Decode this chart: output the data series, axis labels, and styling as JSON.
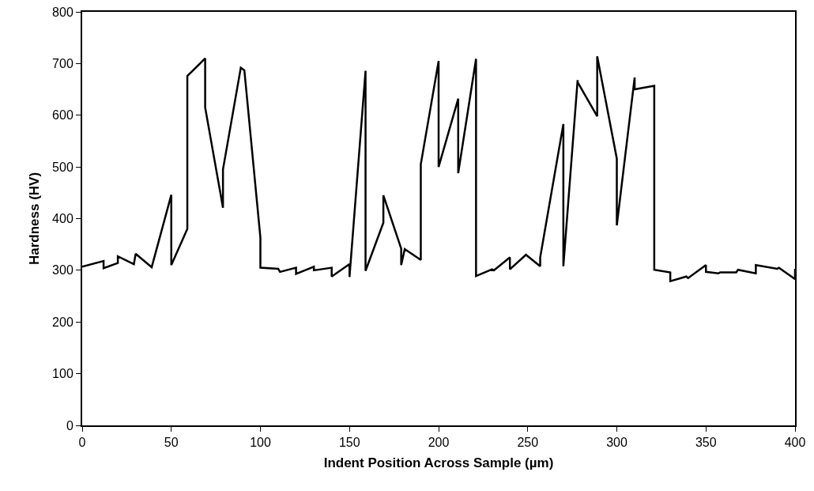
{
  "chart_data": {
    "type": "line",
    "xlabel": "Indent Position Across Sample (µm)",
    "ylabel": "Hardness (HV)",
    "xlim": [
      0,
      400
    ],
    "xticks": [
      0,
      50,
      100,
      150,
      200,
      250,
      300,
      350,
      400
    ],
    "ylim": [
      0,
      800
    ],
    "yticks": [
      0,
      100,
      200,
      300,
      400,
      500,
      600,
      700,
      800
    ],
    "grid": false,
    "marker": "none",
    "line_style": "solid",
    "series": [
      {
        "color": "#000000",
        "x": [
          0,
          12,
          12,
          20,
          20,
          29,
          30,
          39,
          50,
          50,
          59,
          59,
          69,
          69,
          79,
          79,
          89,
          91,
          100,
          100,
          110,
          111,
          120,
          120,
          130,
          130,
          140,
          140,
          150,
          150,
          159,
          159,
          169,
          169,
          179,
          179,
          181,
          190,
          190,
          200,
          200,
          211,
          211,
          221,
          221,
          230,
          231,
          240,
          240,
          249,
          257,
          257,
          270,
          270,
          278,
          278,
          289,
          289,
          300,
          300,
          310,
          310,
          321,
          321,
          330,
          330,
          339,
          340,
          350,
          350,
          357,
          358,
          367,
          368,
          378,
          378,
          390,
          391,
          400,
          400
        ],
        "values": [
          307,
          318,
          304,
          314,
          327,
          312,
          332,
          306,
          446,
          310,
          380,
          676,
          710,
          615,
          421,
          495,
          692,
          687,
          363,
          305,
          303,
          297,
          305,
          293,
          307,
          300,
          305,
          288,
          312,
          287,
          686,
          299,
          392,
          445,
          342,
          310,
          341,
          320,
          505,
          705,
          500,
          632,
          488,
          709,
          289,
          302,
          300,
          325,
          302,
          330,
          308,
          325,
          583,
          308,
          668,
          664,
          598,
          714,
          516,
          387,
          673,
          650,
          657,
          301,
          296,
          279,
          288,
          285,
          310,
          297,
          294,
          296,
          296,
          301,
          294,
          310,
          303,
          305,
          283,
          303
        ]
      }
    ]
  }
}
